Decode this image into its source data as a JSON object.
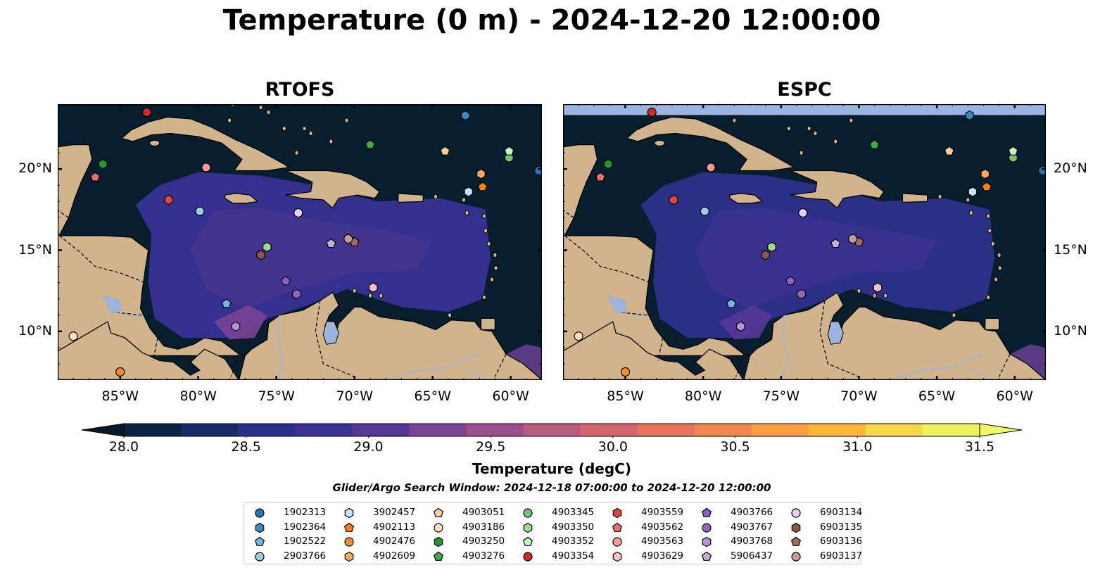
{
  "title": "Temperature (0 m) - 2024-12-20 12:00:00",
  "panels": [
    {
      "title": "RTOFS",
      "top_band": false
    },
    {
      "title": "ESPC",
      "top_band": true
    }
  ],
  "axes": {
    "lon_ticks": [
      "85°W",
      "80°W",
      "75°W",
      "70°W",
      "65°W",
      "60°W"
    ],
    "lat_ticks": [
      "20°N",
      "15°N",
      "10°N"
    ],
    "lon_range": [
      -89,
      -58
    ],
    "lat_range": [
      7,
      24
    ]
  },
  "colorbar": {
    "label": "Temperature (degC)",
    "ticks": [
      "28.0",
      "28.5",
      "29.0",
      "29.5",
      "30.0",
      "30.5",
      "31.0",
      "31.5"
    ],
    "range": [
      28.0,
      31.5
    ],
    "colors": [
      "#0b2247",
      "#152a66",
      "#2b2f8a",
      "#3b3192",
      "#553895",
      "#7a4493",
      "#9a4f8c",
      "#b85c7e",
      "#d3666c",
      "#e7725d",
      "#f28650",
      "#f99d40",
      "#fdb53a",
      "#f5d74c",
      "#ecf25f"
    ],
    "extend_low_color": "#061a2b",
    "extend_high_color": "#eff765"
  },
  "search_window": "Glider/Argo Search Window: 2024-12-18 07:00:00 to 2024-12-20 12:00:00",
  "colors": {
    "ocean_dark": "#061e2e",
    "land": "#d2b48c",
    "lake": "#9ab5df",
    "warm_water": "#3b3192"
  },
  "floats": [
    {
      "id": "1902313",
      "marker": "circle",
      "color": "#1f77b4",
      "lon": -58.2,
      "lat": 19.9
    },
    {
      "id": "1902364",
      "marker": "hexagon",
      "color": "#3b87c4",
      "lon": -62.9,
      "lat": 23.3
    },
    {
      "id": "1902522",
      "marker": "pentagon",
      "color": "#6fb6e6",
      "lon": -78.2,
      "lat": 11.7
    },
    {
      "id": "2903766",
      "marker": "circle",
      "color": "#9ecae1",
      "lon": -79.9,
      "lat": 17.4
    },
    {
      "id": "3902457",
      "marker": "hexagon",
      "color": "#c6e3f5",
      "lon": -62.7,
      "lat": 18.6
    },
    {
      "id": "4902113",
      "marker": "pentagon",
      "color": "#ff7f0e",
      "lon": -61.8,
      "lat": 18.9
    },
    {
      "id": "4902476",
      "marker": "circle",
      "color": "#ff8c2a",
      "lon": -85.0,
      "lat": 7.5
    },
    {
      "id": "4902609",
      "marker": "hexagon",
      "color": "#ffa85c",
      "lon": -61.9,
      "lat": 19.7
    },
    {
      "id": "4903051",
      "marker": "pentagon",
      "color": "#ffcf96",
      "lon": -64.2,
      "lat": 21.1
    },
    {
      "id": "4903186",
      "marker": "circle",
      "color": "#ffe2c2",
      "lon": -88.0,
      "lat": 9.7
    },
    {
      "id": "4903250",
      "marker": "hexagon",
      "color": "#1f9b2c",
      "lon": -86.1,
      "lat": 20.3
    },
    {
      "id": "4903276",
      "marker": "pentagon",
      "color": "#3cb043",
      "lon": -69.0,
      "lat": 21.5
    },
    {
      "id": "4903345",
      "marker": "circle",
      "color": "#74c476",
      "lon": -60.1,
      "lat": 20.7
    },
    {
      "id": "4903350",
      "marker": "hexagon",
      "color": "#98df8a",
      "lon": -75.6,
      "lat": 15.2
    },
    {
      "id": "4903352",
      "marker": "pentagon",
      "color": "#c7f5c0",
      "lon": -60.1,
      "lat": 21.1
    },
    {
      "id": "4903354",
      "marker": "circle",
      "color": "#d62728",
      "lon": -83.3,
      "lat": 23.5
    },
    {
      "id": "4903559",
      "marker": "hexagon",
      "color": "#e04545",
      "lon": -81.9,
      "lat": 18.1
    },
    {
      "id": "4903562",
      "marker": "pentagon",
      "color": "#f26a6a",
      "lon": -86.6,
      "lat": 19.5
    },
    {
      "id": "4903563",
      "marker": "circle",
      "color": "#ff9896",
      "lon": -79.5,
      "lat": 20.1
    },
    {
      "id": "4903629",
      "marker": "hexagon",
      "color": "#ffc0c0",
      "lon": -68.8,
      "lat": 12.7
    },
    {
      "id": "4903766",
      "marker": "pentagon",
      "color": "#8f5fc2",
      "lon": -74.4,
      "lat": 13.1
    },
    {
      "id": "4903767",
      "marker": "circle",
      "color": "#9467bd",
      "lon": -73.7,
      "lat": 12.3
    },
    {
      "id": "4903768",
      "marker": "hexagon",
      "color": "#b692db",
      "lon": -77.6,
      "lat": 10.3
    },
    {
      "id": "5906437",
      "marker": "pentagon",
      "color": "#c5b0d5",
      "lon": -71.5,
      "lat": 15.4
    },
    {
      "id": "6903134",
      "marker": "circle",
      "color": "#e7d0f5",
      "lon": -73.6,
      "lat": 17.3
    },
    {
      "id": "6903135",
      "marker": "hexagon",
      "color": "#8c564b",
      "lon": -76.0,
      "lat": 14.7
    },
    {
      "id": "6903136",
      "marker": "pentagon",
      "color": "#a66a5e",
      "lon": -70.0,
      "lat": 15.5
    },
    {
      "id": "6903137",
      "marker": "circle",
      "color": "#c49c94",
      "lon": -70.4,
      "lat": 15.7
    }
  ]
}
